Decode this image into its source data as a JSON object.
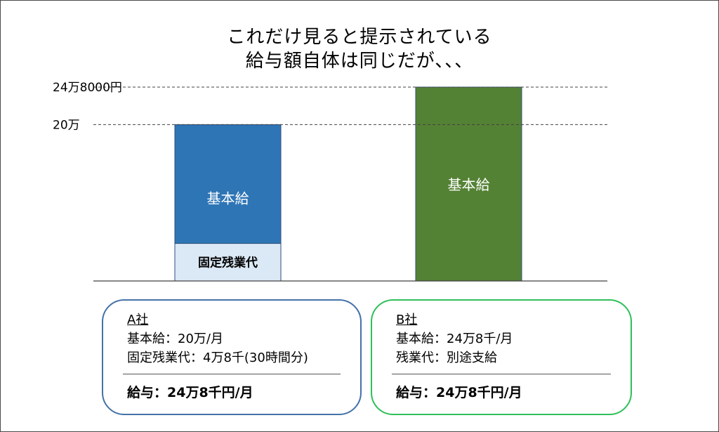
{
  "title_lines": [
    "これだけ見ると提示されている",
    "給与額自体は同じだが、、、"
  ],
  "chart_data": {
    "type": "bar",
    "stacked": true,
    "categories": [
      "A社",
      "B社"
    ],
    "series": [
      {
        "name": "基本給",
        "values": [
          200000,
          248000
        ]
      },
      {
        "name": "固定残業代",
        "values": [
          48000,
          0
        ]
      }
    ],
    "ylim": [
      0,
      248000
    ],
    "reference_lines": [
      {
        "value": 248000,
        "label": "24万8000円"
      },
      {
        "value": 200000,
        "label": "20万"
      }
    ],
    "bar_segment_labels": [
      {
        "category": "A社",
        "series": "基本給",
        "text": "基本給"
      },
      {
        "category": "A社",
        "series": "固定残業代",
        "text": "固定残業代"
      },
      {
        "category": "B社",
        "series": "基本給",
        "text": "基本給"
      }
    ],
    "colors": {
      "A社_基本給": "#2e75b6",
      "A社_固定残業代": "#dbe8f5",
      "B社_基本給": "#548235"
    }
  },
  "cards": {
    "a": {
      "company": "A社",
      "lines": [
        "基本給：20万/月",
        "固定残業代：4万8千(30時間分)"
      ],
      "salary": "給与：24万8千円/月",
      "border_color": "#4472a8"
    },
    "b": {
      "company": "B社",
      "lines": [
        "基本給：24万8千/月",
        "残業代：別途支給"
      ],
      "salary": "給与：24万8千円/月",
      "border_color": "#2ebf5a"
    }
  }
}
